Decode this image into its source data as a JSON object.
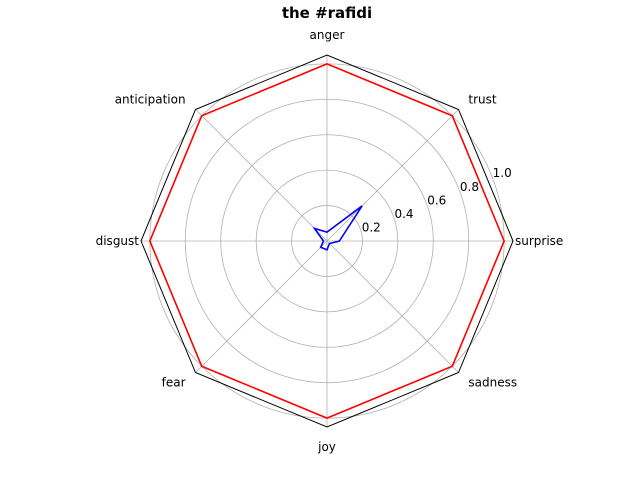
{
  "chart_data": {
    "type": "radar",
    "title": "the #rafidi",
    "categories": [
      "surprise",
      "trust",
      "anger",
      "anticipation",
      "disgust",
      "fear",
      "joy",
      "sadness"
    ],
    "radial_ticks": [
      0.2,
      0.4,
      0.6,
      0.8,
      1.0
    ],
    "radial_tick_labels": [
      "0.2",
      "0.4",
      "0.6",
      "0.8",
      "1.0"
    ],
    "rlim": [
      0,
      1.05
    ],
    "grid": true,
    "series": [
      {
        "color": "#ff0000",
        "values": [
          1.0,
          1.0,
          1.0,
          1.0,
          1.0,
          1.0,
          1.0,
          1.0
        ]
      },
      {
        "color": "#0000ff",
        "values": [
          0.07,
          0.28,
          0.05,
          0.1,
          0.02,
          0.05,
          0.05,
          0.02
        ]
      }
    ]
  },
  "colors": {
    "grid": "#b0b0b0",
    "frame": "#000000"
  }
}
